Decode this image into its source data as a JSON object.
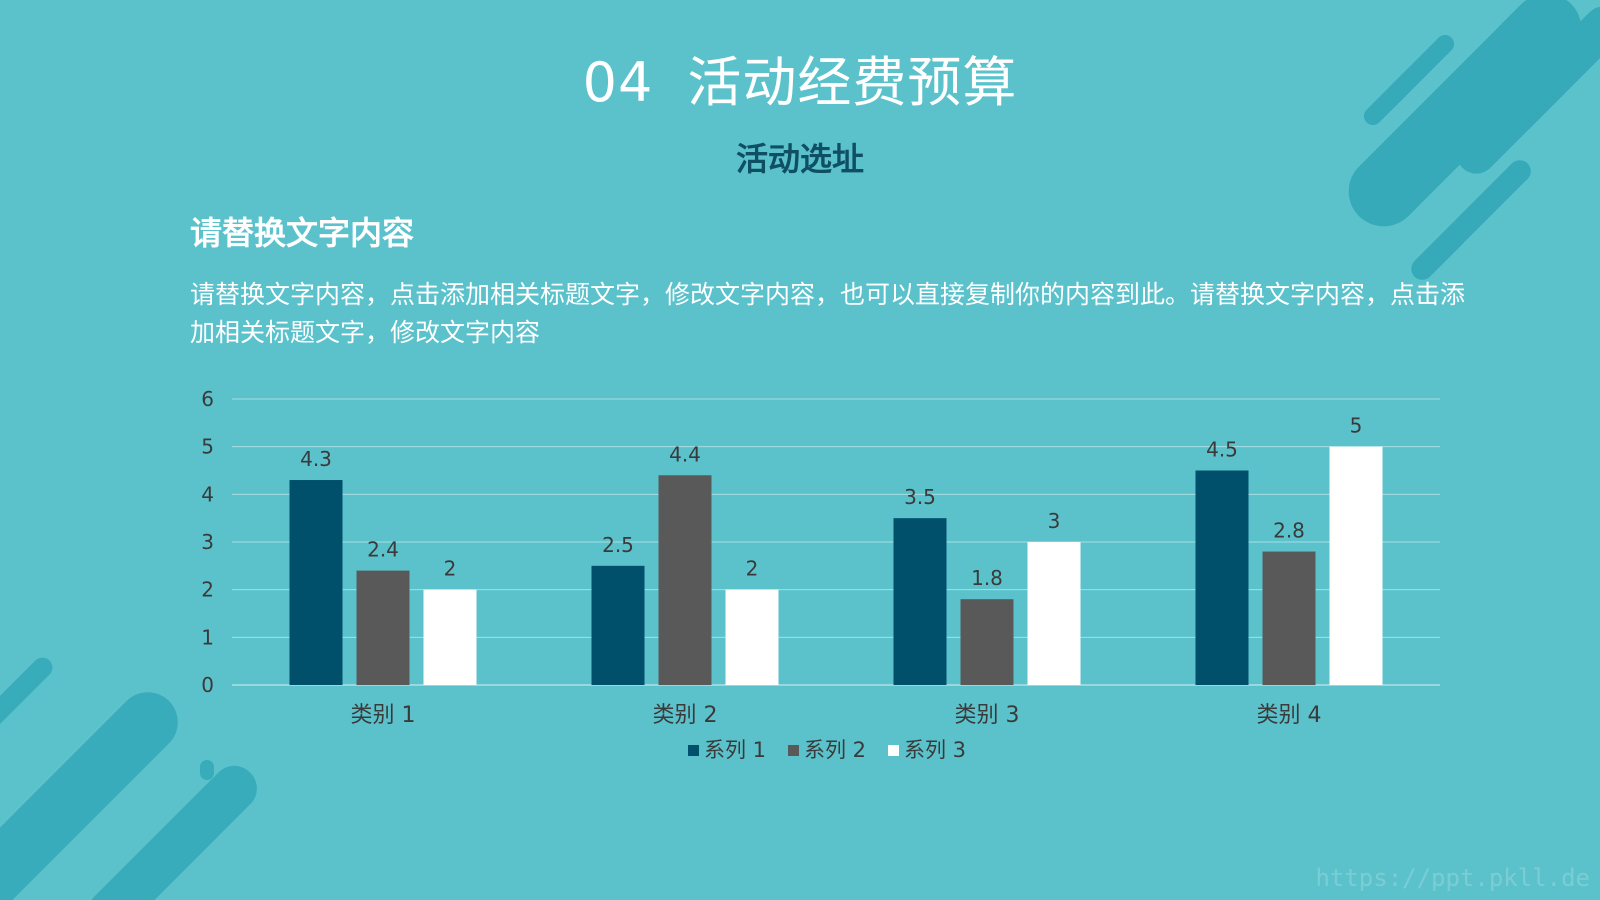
{
  "slide": {
    "title_number": "04",
    "title_text": "活动经费预算",
    "subtitle": "活动选址",
    "heading": "请替换文字内容",
    "body": "请替换文字内容，点击添加相关标题文字，修改文字内容，也可以直接复制你的内容到此。请替换文字内容，点击添加相关标题文字，修改文字内容",
    "watermark": "https://ppt.pkll.de"
  },
  "colors": {
    "background": "#5bc2cc",
    "subtitle": "#0f4f63",
    "series": [
      "#004f6b",
      "#595959",
      "#ffffff"
    ],
    "decoration": "#2aa3b3"
  },
  "chart_data": {
    "type": "bar",
    "categories": [
      "类别 1",
      "类别 2",
      "类别 3",
      "类别 4"
    ],
    "series": [
      {
        "name": "系列 1",
        "values": [
          4.3,
          2.5,
          3.5,
          4.5
        ]
      },
      {
        "name": "系列 2",
        "values": [
          2.4,
          4.4,
          1.8,
          2.8
        ]
      },
      {
        "name": "系列 3",
        "values": [
          2,
          2,
          3,
          5
        ]
      }
    ],
    "ylim": [
      0,
      6
    ],
    "yticks": [
      0,
      1,
      2,
      3,
      4,
      5,
      6
    ],
    "grid": true,
    "legend": "bottom",
    "data_labels": true
  }
}
